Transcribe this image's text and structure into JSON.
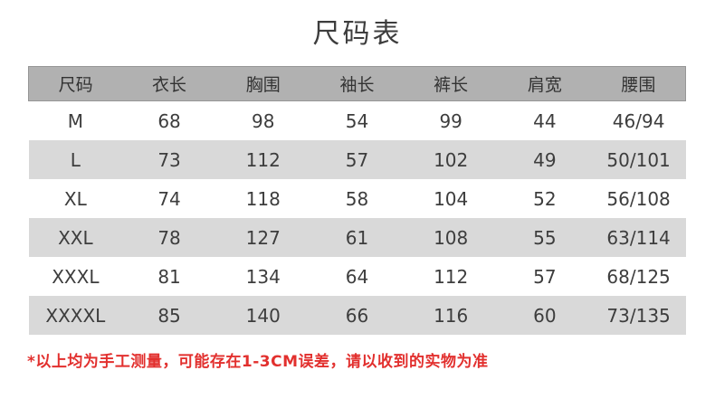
{
  "title": "尺码表",
  "note": "*以上均为手工测量，可能存在1-3CM误差，请以收到的实物为准",
  "chart_data": {
    "type": "table",
    "title": "尺码表",
    "columns": [
      "尺码",
      "衣长",
      "胸围",
      "袖长",
      "裤长",
      "肩宽",
      "腰围"
    ],
    "rows": [
      [
        "M",
        "68",
        "98",
        "54",
        "99",
        "44",
        "46/94"
      ],
      [
        "L",
        "73",
        "112",
        "57",
        "102",
        "49",
        "50/101"
      ],
      [
        "XL",
        "74",
        "118",
        "58",
        "104",
        "52",
        "56/108"
      ],
      [
        "XXL",
        "78",
        "127",
        "61",
        "108",
        "55",
        "63/114"
      ],
      [
        "XXXL",
        "81",
        "134",
        "64",
        "112",
        "57",
        "68/125"
      ],
      [
        "XXXXL",
        "85",
        "140",
        "66",
        "116",
        "60",
        "73/135"
      ]
    ],
    "layout": {
      "striped_row_indices": [
        1,
        3,
        5
      ],
      "header_background": "gray-bar",
      "alignment": "center"
    }
  },
  "colors": {
    "background": "#ffffff",
    "header_bg": "#b1b1b1",
    "stripe_bg": "#d9d9d9",
    "text": "#3d3d3d",
    "note_red": "#e2302e"
  }
}
